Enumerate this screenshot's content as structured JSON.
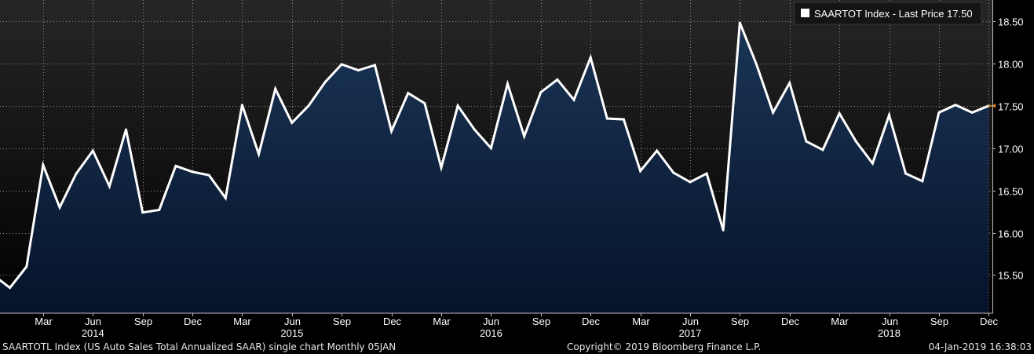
{
  "chart_data": {
    "type": "area",
    "title": "",
    "xlabel": "",
    "ylabel": "",
    "legend": {
      "label": "SAARTOT Index - Last Price 17.50",
      "placement": "top-right"
    },
    "last_price_label": "17.50",
    "ylim": [
      15.05,
      18.75
    ],
    "y_ticks": [
      "15.50",
      "16.00",
      "16.50",
      "17.00",
      "17.50",
      "18.00",
      "18.50"
    ],
    "y_tick_values": [
      15.5,
      16.0,
      16.5,
      17.0,
      17.5,
      18.0,
      18.5
    ],
    "x_month_ticks": [
      {
        "label": "Mar",
        "index": 3
      },
      {
        "label": "Jun",
        "index": 6
      },
      {
        "label": "Sep",
        "index": 9
      },
      {
        "label": "Dec",
        "index": 12
      },
      {
        "label": "Mar",
        "index": 15
      },
      {
        "label": "Jun",
        "index": 18
      },
      {
        "label": "Sep",
        "index": 21
      },
      {
        "label": "Dec",
        "index": 24
      },
      {
        "label": "Mar",
        "index": 27
      },
      {
        "label": "Jun",
        "index": 30
      },
      {
        "label": "Sep",
        "index": 33
      },
      {
        "label": "Dec",
        "index": 36
      },
      {
        "label": "Mar",
        "index": 39
      },
      {
        "label": "Jun",
        "index": 42
      },
      {
        "label": "Sep",
        "index": 45
      },
      {
        "label": "Dec",
        "index": 48
      },
      {
        "label": "Mar",
        "index": 51
      },
      {
        "label": "Jun",
        "index": 54
      },
      {
        "label": "Sep",
        "index": 57
      },
      {
        "label": "Dec",
        "index": 60
      }
    ],
    "x_year_ticks": [
      {
        "label": "2014",
        "index": 6
      },
      {
        "label": "2015",
        "index": 18
      },
      {
        "label": "2016",
        "index": 30
      },
      {
        "label": "2017",
        "index": 42
      },
      {
        "label": "2018",
        "index": 54
      }
    ],
    "series": [
      {
        "name": "SAARTOT Index",
        "color": "#ffffff",
        "fill_top": "#1a3556",
        "fill_bottom": "#06132a",
        "values": [
          15.5,
          15.35,
          15.6,
          16.8,
          16.3,
          16.7,
          16.97,
          16.55,
          17.22,
          16.24,
          16.27,
          16.79,
          16.72,
          16.68,
          16.41,
          17.51,
          16.93,
          17.7,
          17.3,
          17.5,
          17.78,
          17.99,
          17.92,
          17.98,
          17.2,
          17.65,
          17.53,
          16.77,
          17.5,
          17.22,
          17.0,
          17.76,
          17.14,
          17.66,
          17.81,
          17.57,
          18.07,
          17.35,
          17.34,
          16.73,
          16.97,
          16.71,
          16.6,
          16.7,
          16.03,
          18.48,
          17.99,
          17.42,
          17.77,
          17.08,
          16.98,
          17.41,
          17.08,
          16.82,
          17.39,
          16.7,
          16.61,
          17.42,
          17.51,
          17.42,
          17.5
        ]
      }
    ],
    "grid": true
  },
  "footer": {
    "left": "SAARTOTL Index (US Auto Sales Total Annualized SAAR) single chart  Monthly 05JAN",
    "center": "Copyright© 2019 Bloomberg Finance L.P.",
    "right": "04-Jan-2019 16:38:03"
  },
  "colors": {
    "background_top": "#262626",
    "background_bottom": "#000000",
    "grid": "#8c8c8c",
    "axis_text": "#ffffff",
    "last_price_marker": "#e08a1e"
  }
}
